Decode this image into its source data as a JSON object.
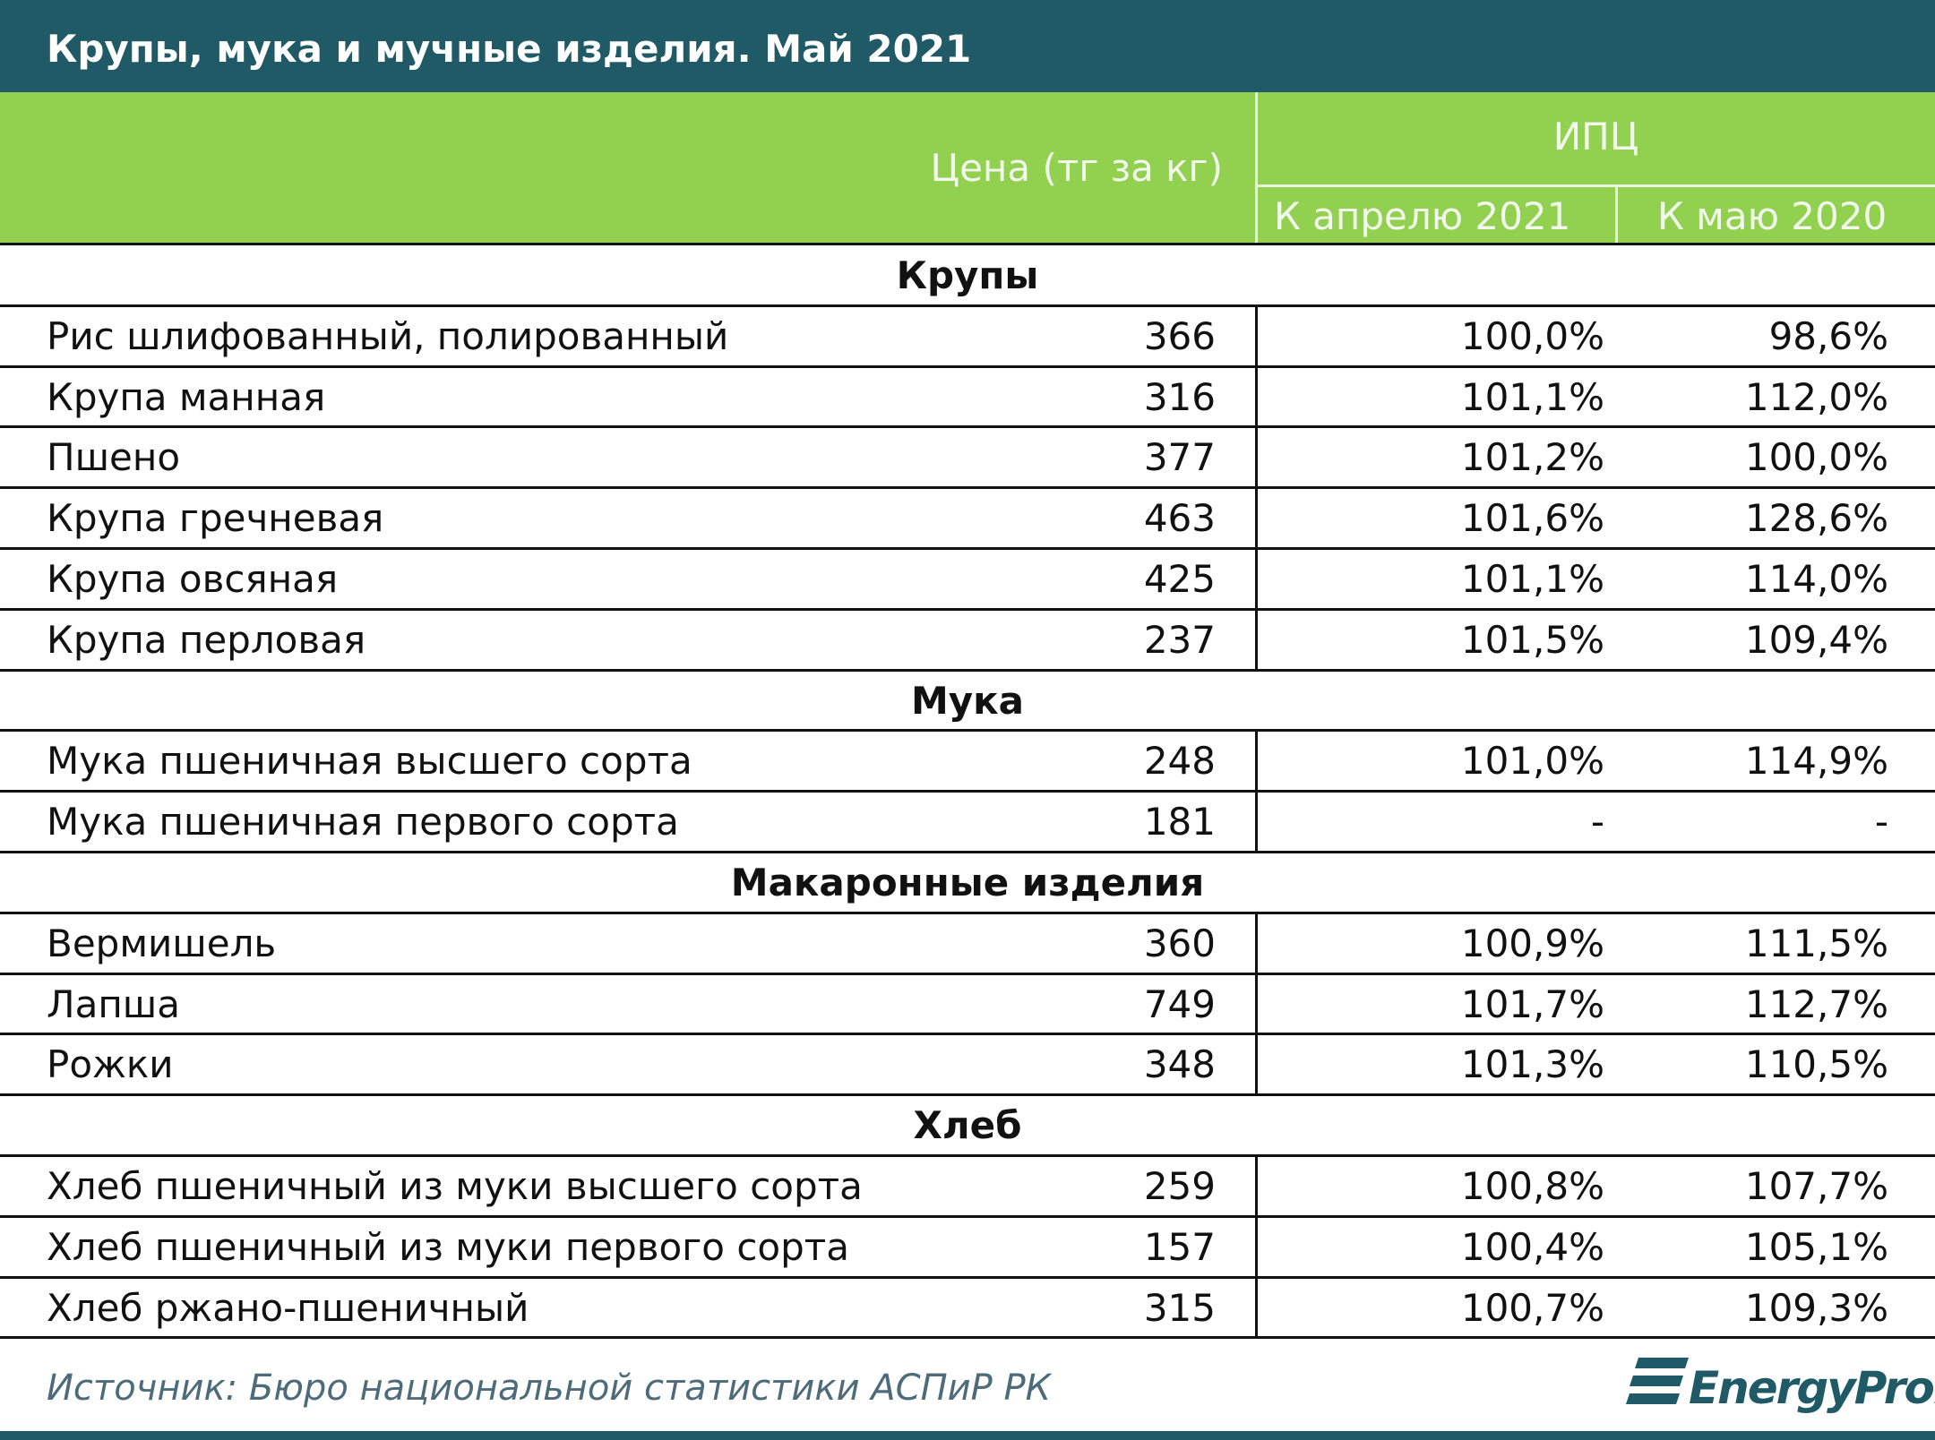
{
  "title": "Крупы, мука и мучные изделия. Май 2021",
  "header": {
    "price": "Цена (тг за кг)",
    "cpi": "ИПЦ",
    "to_april": "К апрелю 2021",
    "to_may": "К маю 2020"
  },
  "sections": [
    {
      "name": "Крупы",
      "rows": [
        [
          "Рис шлифованный, полированный",
          "366",
          "100,0%",
          "98,6%"
        ],
        [
          "Крупа манная",
          "316",
          "101,1%",
          "112,0%"
        ],
        [
          "Пшено",
          "377",
          "101,2%",
          "100,0%"
        ],
        [
          "Крупа гречневая",
          "463",
          "101,6%",
          "128,6%"
        ],
        [
          "Крупа овсяная",
          "425",
          "101,1%",
          "114,0%"
        ],
        [
          "Крупа перловая",
          "237",
          "101,5%",
          "109,4%"
        ]
      ]
    },
    {
      "name": "Мука",
      "rows": [
        [
          "Мука пшеничная высшего сорта",
          "248",
          "101,0%",
          "114,9%"
        ],
        [
          "Мука пшеничная первого сорта",
          "181",
          "-",
          "-"
        ]
      ]
    },
    {
      "name": "Макаронные изделия",
      "rows": [
        [
          "Вермишель",
          "360",
          "100,9%",
          "111,5%"
        ],
        [
          "Лапша",
          "749",
          "101,7%",
          "112,7%"
        ],
        [
          "Рожки",
          "348",
          "101,3%",
          "110,5%"
        ]
      ]
    },
    {
      "name": "Хлеб",
      "rows": [
        [
          "Хлеб пшеничный из муки высшего сорта",
          "259",
          "100,8%",
          "107,7%"
        ],
        [
          "Хлеб пшеничный из муки первого сорта",
          "157",
          "100,4%",
          "105,1%"
        ],
        [
          "Хлеб ржано-пшеничный",
          "315",
          "100,7%",
          "109,3%"
        ]
      ]
    }
  ],
  "source": "Источник: Бюро национальной статистики АСПиР РК",
  "logo": "EnergyProm"
}
